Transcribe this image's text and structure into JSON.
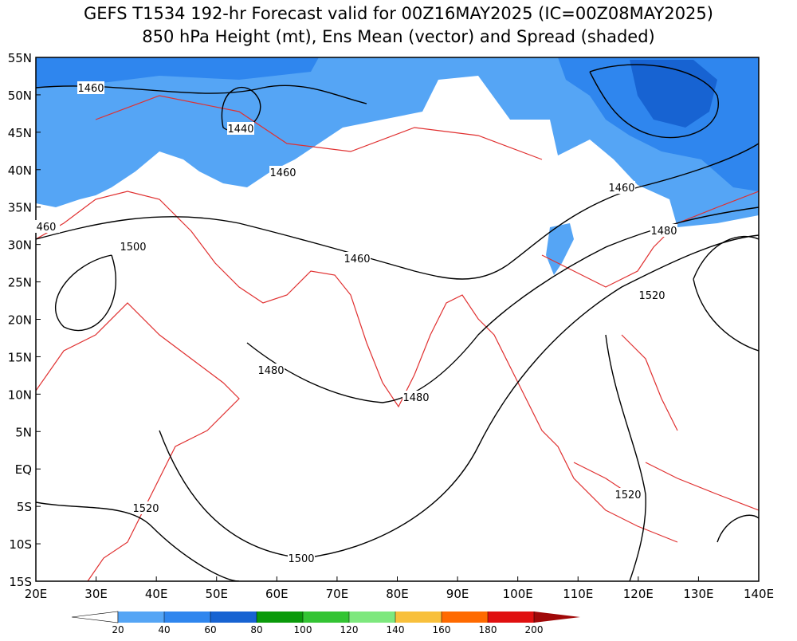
{
  "header": {
    "title_lines": [
      "GEFS T1534 192-hr Forecast valid for 00Z16MAY2025 (IC=00Z08MAY2025)",
      "850 hPa Height (mt), Ens Mean (vector) and Spread (shaded)"
    ]
  },
  "map": {
    "lat_labels": [
      "55N",
      "50N",
      "45N",
      "40N",
      "35N",
      "30N",
      "25N",
      "20N",
      "15N",
      "10N",
      "5N",
      "EQ",
      "5S",
      "10S",
      "15S"
    ],
    "lon_labels": [
      "20E",
      "30E",
      "40E",
      "50E",
      "60E",
      "70E",
      "80E",
      "90E",
      "100E",
      "110E",
      "120E",
      "130E",
      "140E"
    ],
    "contour_labels": [
      "1460",
      "1440",
      "1460",
      "460",
      "1460",
      "1460",
      "1500",
      "1480",
      "1480",
      "1480",
      "1520",
      "1500",
      "1520",
      "1520"
    ]
  },
  "colorbar": {
    "levels": [
      20,
      40,
      60,
      80,
      100,
      120,
      140,
      160,
      180,
      200
    ],
    "colors": [
      "#ffffff",
      "#55a5f5",
      "#2f86ee",
      "#1763d2",
      "#0a9a0a",
      "#33c433",
      "#7ee87e",
      "#f8c03c",
      "#ff6a00",
      "#e01010",
      "#a00808"
    ]
  }
}
